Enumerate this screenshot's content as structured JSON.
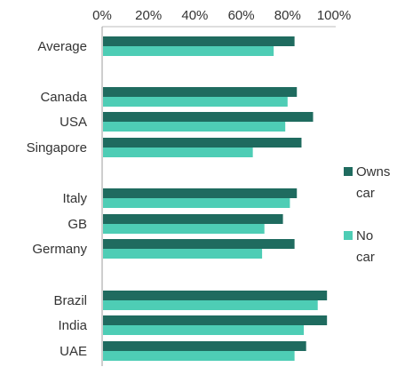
{
  "chart_data": {
    "type": "bar",
    "orientation": "horizontal",
    "title": "",
    "xlabel": "",
    "ylabel": "",
    "xlim": [
      0,
      100
    ],
    "x_ticks": [
      "0%",
      "20%",
      "40%",
      "60%",
      "80%",
      "100%"
    ],
    "grid": false,
    "legend_position": "right",
    "categories": [
      "Average",
      "Canada",
      "USA",
      "Singapore",
      "Italy",
      "GB",
      "Germany",
      "Brazil",
      "India",
      "UAE"
    ],
    "groups": [
      [
        "Average"
      ],
      [
        "Canada",
        "USA",
        "Singapore"
      ],
      [
        "Italy",
        "GB",
        "Germany"
      ],
      [
        "Brazil",
        "India",
        "UAE"
      ]
    ],
    "series": [
      {
        "name": "Owns car",
        "color": "#1f6b5f",
        "values": [
          83,
          84,
          91,
          86,
          84,
          78,
          83,
          97,
          97,
          88
        ]
      },
      {
        "name": "No car",
        "color": "#4ecdb5",
        "values": [
          74,
          80,
          79,
          65,
          81,
          70,
          69,
          93,
          87,
          83
        ]
      }
    ]
  },
  "legend": [
    {
      "lines": [
        "Owns",
        "car"
      ],
      "color": "#1f6b5f"
    },
    {
      "lines": [
        "No",
        "car"
      ],
      "color": "#4ecdb5"
    }
  ]
}
